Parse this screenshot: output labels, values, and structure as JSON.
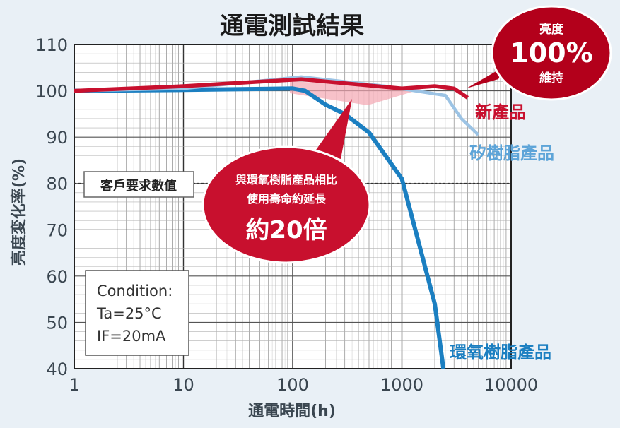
{
  "chart_data": {
    "type": "line",
    "title": "通電測試結果",
    "xlabel": "通電時間(h)",
    "ylabel": "亮度変化率(%)",
    "x_scale": "log",
    "xlim": [
      1,
      10000
    ],
    "ylim": [
      40,
      110
    ],
    "x_ticks": [
      "1",
      "10",
      "100",
      "1000",
      "10000"
    ],
    "y_ticks": [
      "40",
      "50",
      "60",
      "70",
      "80",
      "90",
      "100",
      "110"
    ],
    "grid": true,
    "series": [
      {
        "name": "新產品",
        "color": "#c8102e",
        "x": [
          1,
          10,
          120,
          1000,
          2000,
          3000,
          4000
        ],
        "y": [
          100,
          101,
          102.5,
          100.5,
          101,
          100.5,
          98.5
        ]
      },
      {
        "name": "矽樹脂產品",
        "color": "#9cc3e4",
        "x": [
          1,
          10,
          120,
          700,
          2500,
          3500,
          5000
        ],
        "y": [
          100,
          100.5,
          103,
          101,
          99,
          94,
          90.5
        ]
      },
      {
        "name": "環氧樹脂產品",
        "color": "#1b7fc1",
        "x": [
          1,
          10,
          100,
          130,
          200,
          300,
          500,
          1000,
          2000,
          2400
        ],
        "y": [
          100,
          100.2,
          100.5,
          100,
          97,
          95,
          91,
          81,
          54,
          40
        ]
      }
    ],
    "reference_line": {
      "y": 80,
      "label": "客戶要求數值"
    },
    "callouts": {
      "big_top": "亮度",
      "big_value": "100%",
      "big_bottom": "維持",
      "center_line1": "與環氧樹脂產品相比",
      "center_line2": "使用壽命約延長",
      "center_value": "約20倍"
    },
    "condition": {
      "title": "Condition:",
      "line1": "Ta=25°C",
      "line2": "IF=20mA"
    }
  }
}
